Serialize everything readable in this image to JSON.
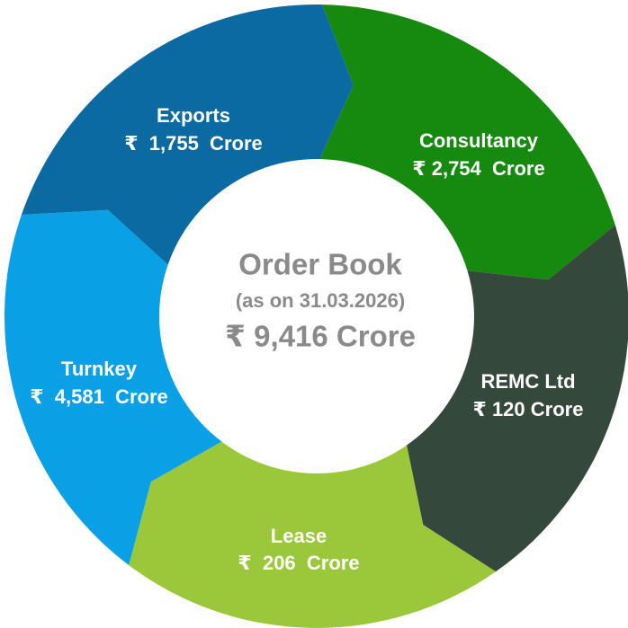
{
  "center": {
    "title": "Order Book",
    "subtitle": "(as on 31.03.2026)",
    "total": "₹ 9,416 Crore"
  },
  "segments": [
    {
      "name": "Consultancy",
      "amount": "₹ 2,754  Crore"
    },
    {
      "name": "REMC Ltd",
      "amount": "₹ 120 Crore"
    },
    {
      "name": "Lease",
      "amount": "₹  206  Crore"
    },
    {
      "name": "Turnkey",
      "amount": "₹  4,581  Crore"
    },
    {
      "name": "Exports",
      "amount": "₹  1,755  Crore"
    }
  ]
}
